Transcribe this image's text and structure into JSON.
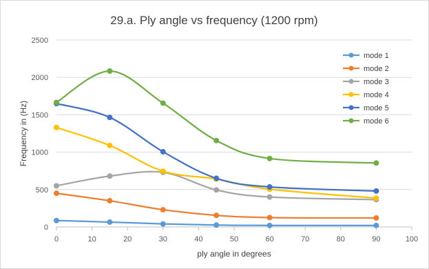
{
  "chart_data": {
    "type": "line",
    "title": "29.a. Ply angle vs frequency (1200 rpm)",
    "xlabel": "ply angle in degrees",
    "ylabel": "Frequency in (Hz)",
    "xlim": [
      0,
      100
    ],
    "ylim": [
      0,
      2500
    ],
    "x_ticks": [
      0,
      10,
      20,
      30,
      40,
      50,
      60,
      70,
      80,
      90,
      100
    ],
    "y_ticks": [
      0,
      500,
      1000,
      1500,
      2000,
      2500
    ],
    "grid": "horizontal",
    "legend_position": "right",
    "smooth": true,
    "series": [
      {
        "name": "mode 1",
        "color": "#5b9bd5",
        "x": [
          0,
          15,
          30,
          45,
          60,
          90
        ],
        "y": [
          85,
          65,
          40,
          25,
          20,
          20
        ]
      },
      {
        "name": "mode 2",
        "color": "#ed7d31",
        "x": [
          0,
          15,
          30,
          45,
          60,
          90
        ],
        "y": [
          450,
          350,
          230,
          155,
          125,
          120
        ]
      },
      {
        "name": "mode 3",
        "color": "#a5a5a5",
        "x": [
          0,
          15,
          30,
          45,
          60,
          90
        ],
        "y": [
          550,
          680,
          730,
          495,
          400,
          365
        ]
      },
      {
        "name": "mode 4",
        "color": "#ffc000",
        "x": [
          0,
          15,
          30,
          45,
          60,
          90
        ],
        "y": [
          1330,
          1090,
          745,
          640,
          505,
          385
        ]
      },
      {
        "name": "mode 5",
        "color": "#4472c4",
        "x": [
          0,
          15,
          30,
          45,
          60,
          90
        ],
        "y": [
          1650,
          1465,
          1005,
          650,
          535,
          480
        ]
      },
      {
        "name": "mode 6",
        "color": "#70ad47",
        "x": [
          0,
          15,
          30,
          45,
          60,
          90
        ],
        "y": [
          1665,
          2085,
          1655,
          1155,
          915,
          855
        ]
      }
    ]
  }
}
